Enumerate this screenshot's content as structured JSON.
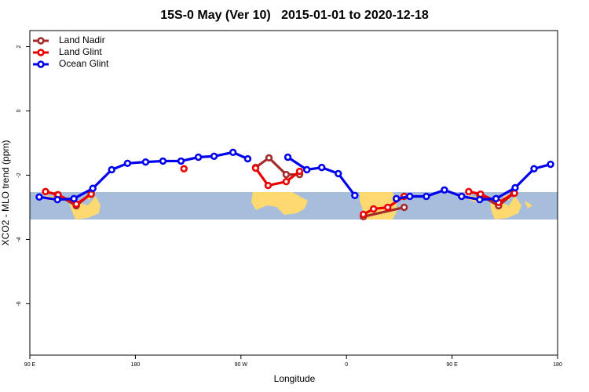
{
  "chart_data": {
    "type": "line",
    "title": "15S-0 May (Ver 10)   2015-01-01 to 2020-12-18",
    "xlabel": "Longitude",
    "ylabel": "XCO2 - MLO trend (ppm)",
    "xlim": [
      90,
      540
    ],
    "ylim": [
      -7.6,
      2.5
    ],
    "xticks": [
      {
        "value": 90,
        "label": "90 E"
      },
      180,
      {
        "value": 270,
        "label": "90 W"
      },
      {
        "value": 360,
        "label": "0"
      },
      {
        "value": 450,
        "label": "90 E"
      },
      180
    ],
    "yticks": [
      -6,
      -4,
      -2,
      0,
      2
    ],
    "legend": "top-left",
    "series": [
      {
        "name": "Land Nadir",
        "color": "#a52a2a",
        "x": [
          113.5,
          129.6,
          142.3,
          null,
          282.5,
          293.9,
          308.6,
          320.0,
          null,
          374.4,
          409.2,
          null,
          473.6,
          489.7,
          502.5
        ],
        "values": [
          -2.61,
          -2.95,
          -2.56,
          null,
          -1.76,
          -1.46,
          -1.98,
          -1.98,
          null,
          -3.29,
          -3.0,
          null,
          -2.61,
          -2.95,
          -2.56
        ]
      },
      {
        "name": "Land Glint",
        "color": "#ee0000",
        "x": [
          103.4,
          114.1,
          129.6,
          142.3,
          null,
          221.4,
          null,
          282.5,
          293.2,
          308.6,
          320.0,
          null,
          374.4,
          383.1,
          395.2,
          409.2,
          null,
          464.2,
          474.3,
          489.7,
          503.2
        ],
        "values": [
          -2.51,
          -2.61,
          -2.9,
          -2.59,
          null,
          -1.8,
          null,
          -1.78,
          -2.32,
          -2.2,
          -1.88,
          null,
          -3.22,
          -3.05,
          -3.0,
          -2.66,
          null,
          -2.51,
          -2.59,
          -2.85,
          -2.56
        ]
      },
      {
        "name": "Ocean Glint",
        "color": "#0000ee",
        "x": [
          98.0,
          113.5,
          127.6,
          143.7,
          159.8,
          173.3,
          188.7,
          203.5,
          218.9,
          233.7,
          247.1,
          263.2,
          275.8,
          null,
          310.0,
          326.2,
          338.9,
          353.0,
          367.1,
          null,
          402.5,
          414.0,
          428.1,
          443.5,
          458.2,
          473.6,
          487.5,
          503.8,
          519.9,
          534.0
        ],
        "values": [
          -2.68,
          -2.76,
          -2.73,
          -2.41,
          -1.83,
          -1.63,
          -1.59,
          -1.56,
          -1.56,
          -1.44,
          -1.41,
          -1.29,
          -1.49,
          null,
          -1.44,
          -1.83,
          -1.76,
          -1.95,
          -2.63,
          null,
          -2.73,
          -2.66,
          -2.66,
          -2.46,
          -2.66,
          -2.76,
          -2.73,
          -2.39,
          -1.8,
          -1.66
        ]
      }
    ]
  }
}
